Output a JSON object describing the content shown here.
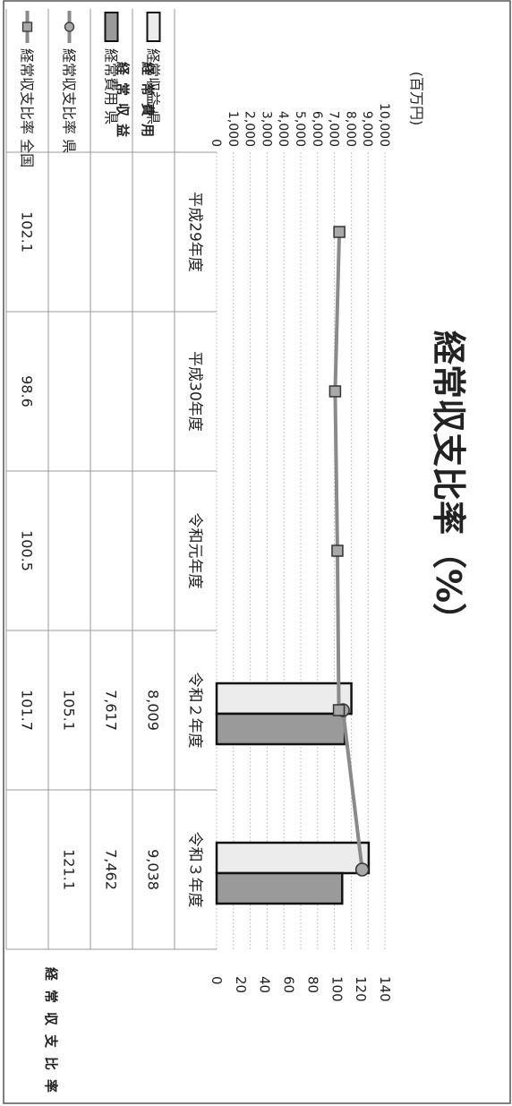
{
  "chart_data": {
    "type": "bar",
    "title": "経常収支比率（%）",
    "y_left_label": [
      "経常収益",
      "経常費用"
    ],
    "y_left_unit": "(百万円)",
    "y_left_ticks": [
      "10,000",
      "9,000",
      "8,000",
      "7,000",
      "6,000",
      "5,000",
      "4,000",
      "3,000",
      "2,000",
      "1,000",
      "0"
    ],
    "y_left_lim": [
      0,
      10000
    ],
    "y_right_label": "経常収支比率",
    "y_right_ticks": [
      "140",
      "120",
      "100",
      "80",
      "60",
      "40",
      "20",
      "0"
    ],
    "y_right_lim": [
      0,
      140
    ],
    "categories": [
      "平成29年度",
      "平成30年度",
      "令和元年度",
      "令和２年度",
      "令和３年度"
    ],
    "series": [
      {
        "name": "経常収益 県",
        "kind": "bar",
        "axis": "left",
        "values": [
          null,
          null,
          null,
          8009,
          9038
        ],
        "labels": [
          "",
          "",
          "",
          "8,009",
          "9,038"
        ]
      },
      {
        "name": "経常費用 県",
        "kind": "bar",
        "axis": "left",
        "values": [
          null,
          null,
          null,
          7617,
          7462
        ],
        "labels": [
          "",
          "",
          "",
          "7,617",
          "7,462"
        ]
      },
      {
        "name": "経常収支比率 県",
        "kind": "line",
        "axis": "right",
        "values": [
          null,
          null,
          null,
          105.1,
          121.1
        ],
        "labels": [
          "",
          "",
          "",
          "105.1",
          "121.1"
        ]
      },
      {
        "name": "経常収支比率 全国",
        "kind": "line",
        "axis": "right",
        "values": [
          102.1,
          98.6,
          100.5,
          101.7,
          null
        ],
        "labels": [
          "102.1",
          "98.6",
          "100.5",
          "101.7",
          ""
        ]
      }
    ],
    "grid": true,
    "legend": "table-left"
  },
  "colors": {
    "revenue_fill": "#ececec",
    "cost_fill": "#9a9a9a",
    "line": "#8a8a8a",
    "marker_fill": "#a8a8a8",
    "grid": "#c4c4c4"
  }
}
